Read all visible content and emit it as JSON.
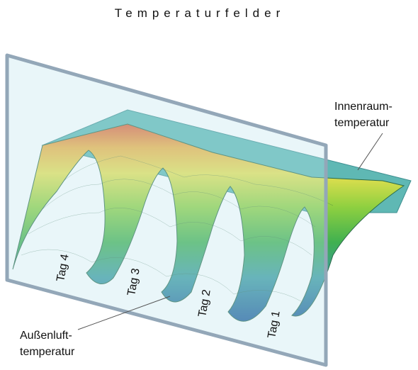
{
  "header": {
    "title": "Temperaturfelder"
  },
  "labels": {
    "indoor": [
      "Innenraum-",
      "temperatur"
    ],
    "outdoor": [
      "Außenluft-",
      "temperatur"
    ]
  },
  "days": [
    "Tag 4",
    "Tag 3",
    "Tag 2",
    "Tag 1"
  ]
}
